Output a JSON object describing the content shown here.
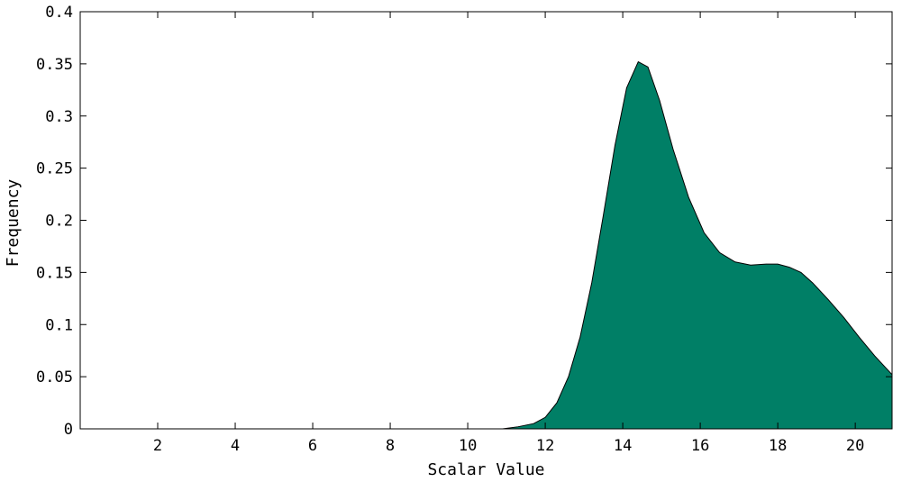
{
  "chart_data": {
    "type": "area",
    "title": "",
    "xlabel": "Scalar Value",
    "ylabel": "Frequency",
    "xlim": [
      0.0,
      20.95
    ],
    "ylim": [
      0,
      0.4
    ],
    "xticks": [
      2,
      4,
      6,
      8,
      10,
      12,
      14,
      16,
      18,
      20
    ],
    "xtick_labels": [
      "2",
      "4",
      "6",
      "8",
      "10",
      "12",
      "14",
      "16",
      "18",
      "20"
    ],
    "yticks": [
      0,
      0.05,
      0.1,
      0.15,
      0.2,
      0.25,
      0.3,
      0.35,
      0.4
    ],
    "ytick_labels": [
      "0",
      "0.05",
      "0.1",
      "0.15",
      "0.2",
      "0.25",
      "0.3",
      "0.35",
      "0.4"
    ],
    "grid": false,
    "fill_color": "#007f66",
    "line_color": "#000000",
    "series": [
      {
        "x": [
          0.8,
          10.9,
          11.3,
          11.7,
          12.0,
          12.3,
          12.6,
          12.9,
          13.2,
          13.5,
          13.8,
          14.1,
          14.4,
          14.65,
          14.95,
          15.3,
          15.7,
          16.1,
          16.5,
          16.9,
          17.3,
          17.7,
          18.0,
          18.3,
          18.6,
          18.9,
          19.3,
          19.7,
          20.1,
          20.5,
          20.95
        ],
        "y": [
          0.0,
          0.0,
          0.002,
          0.005,
          0.011,
          0.025,
          0.05,
          0.088,
          0.14,
          0.205,
          0.272,
          0.327,
          0.352,
          0.347,
          0.315,
          0.268,
          0.222,
          0.188,
          0.169,
          0.16,
          0.157,
          0.158,
          0.158,
          0.155,
          0.15,
          0.14,
          0.124,
          0.107,
          0.088,
          0.07,
          0.052
        ]
      }
    ]
  }
}
